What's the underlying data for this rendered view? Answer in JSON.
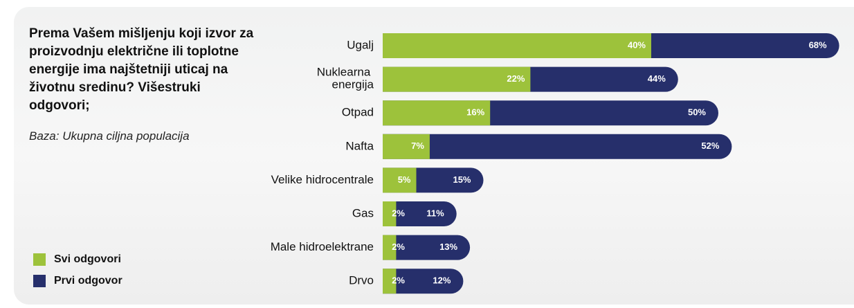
{
  "chart_data": {
    "type": "bar",
    "title": "Prema Vašem mišljenju koji izvor za proizvodnju električne ili toplotne energije ima najštetniji uticaj na životnu sredinu? Višestruki odgovori;",
    "subtitle": "Baza: Ukupna ciljna populacija",
    "categories": [
      "Ugalj",
      "Nuklearna energija",
      "Otpad",
      "Nafta",
      "Velike hidrocentrale",
      "Gas",
      "Male hidroelektrane",
      "Drvo"
    ],
    "series": [
      {
        "name": "Svi odgovori",
        "color": "#9dc23b",
        "values": [
          40,
          22,
          16,
          7,
          5,
          2,
          2,
          2
        ],
        "value_labels": [
          "40%",
          "22%",
          "16%",
          "7%",
          "5%",
          "2%",
          "2%",
          "2%"
        ]
      },
      {
        "name": "Prvi odgovor",
        "color": "#262f6b",
        "values": [
          68,
          44,
          50,
          52,
          15,
          11,
          13,
          12
        ],
        "value_labels": [
          "68%",
          "44%",
          "50%",
          "52%",
          "15%",
          "11%",
          "13%",
          "12%"
        ]
      }
    ]
  }
}
